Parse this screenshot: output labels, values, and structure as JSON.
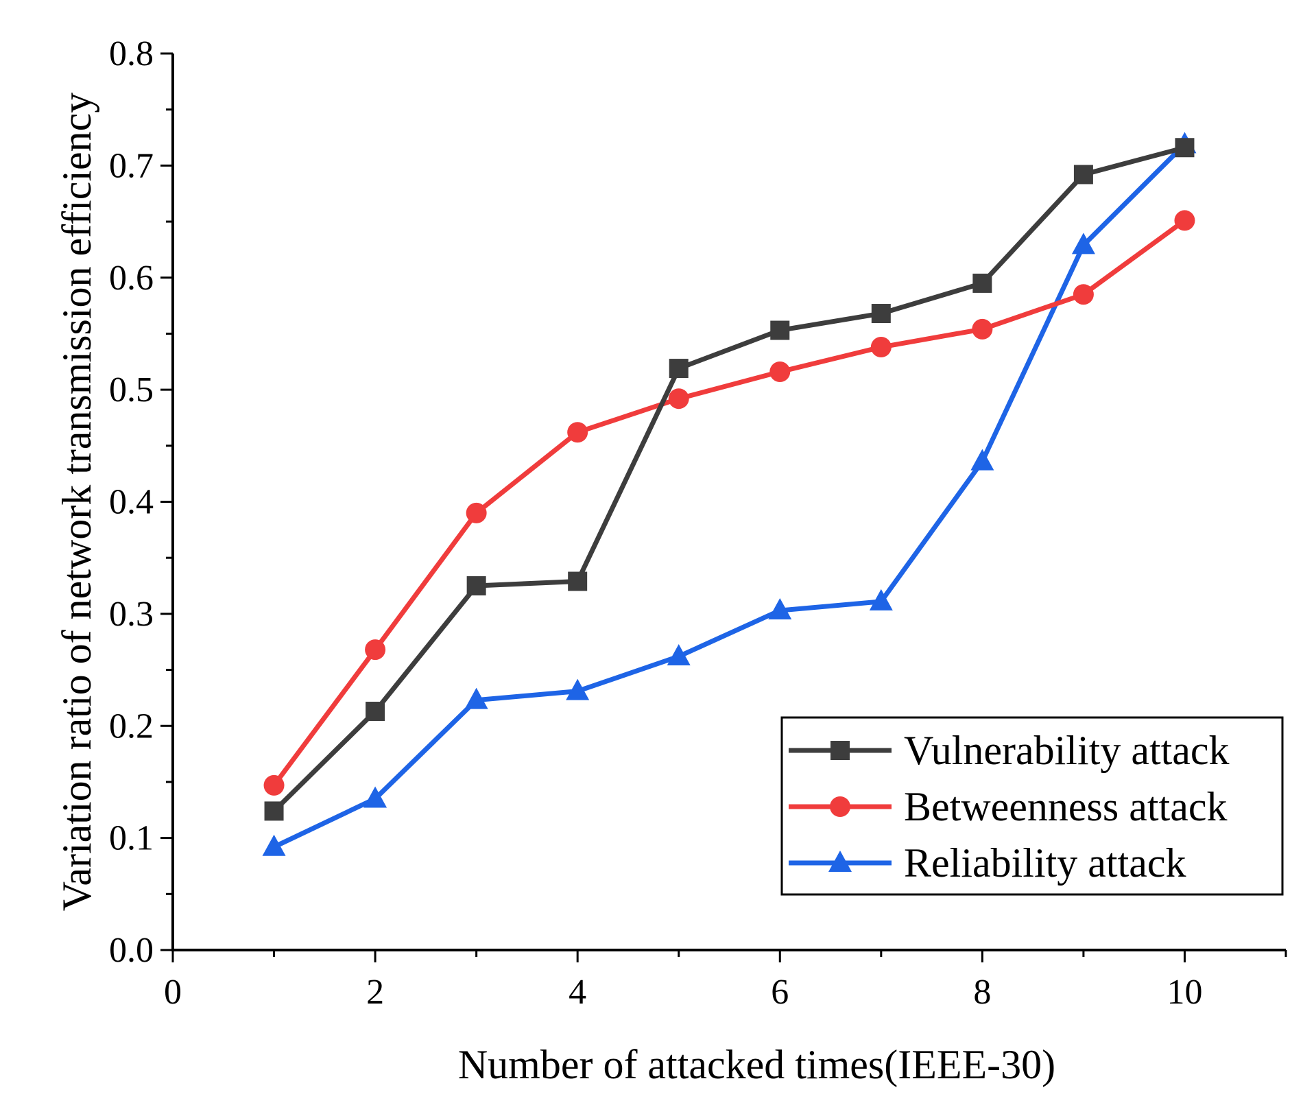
{
  "chart_data": {
    "type": "line",
    "title": "",
    "xlabel": "Number of attacked times(IEEE-30)",
    "ylabel": "Variation ratio of network transmission efficiency",
    "xlim": [
      0,
      11
    ],
    "ylim": [
      0,
      0.8
    ],
    "xticks": [
      0,
      2,
      4,
      6,
      8,
      10
    ],
    "xtick_labels": [
      "0",
      "2",
      "4",
      "6",
      "8",
      "10"
    ],
    "yticks": [
      0,
      0.1,
      0.2,
      0.3,
      0.4,
      0.5,
      0.6,
      0.7,
      0.8
    ],
    "ytick_labels": [
      "0.0",
      "0.1",
      "0.2",
      "0.3",
      "0.4",
      "0.5",
      "0.6",
      "0.7",
      "0.8"
    ],
    "grid": false,
    "legend_position": "bottom-right",
    "x": [
      1,
      2,
      3,
      4,
      5,
      6,
      7,
      8,
      9,
      10
    ],
    "series": [
      {
        "name": "Vulnerability attack",
        "color": "#3d3d3d",
        "marker": "square",
        "values": [
          0.124,
          0.213,
          0.325,
          0.329,
          0.519,
          0.553,
          0.568,
          0.595,
          0.692,
          0.716
        ]
      },
      {
        "name": "Betweenness attack",
        "color": "#f03c3c",
        "marker": "circle",
        "values": [
          0.147,
          0.268,
          0.39,
          0.462,
          0.492,
          0.516,
          0.538,
          0.554,
          0.585,
          0.651
        ]
      },
      {
        "name": "Reliability attack",
        "color": "#1e64e6",
        "marker": "triangle",
        "values": [
          0.092,
          0.135,
          0.223,
          0.231,
          0.262,
          0.303,
          0.311,
          0.436,
          0.629,
          0.719
        ]
      }
    ]
  }
}
